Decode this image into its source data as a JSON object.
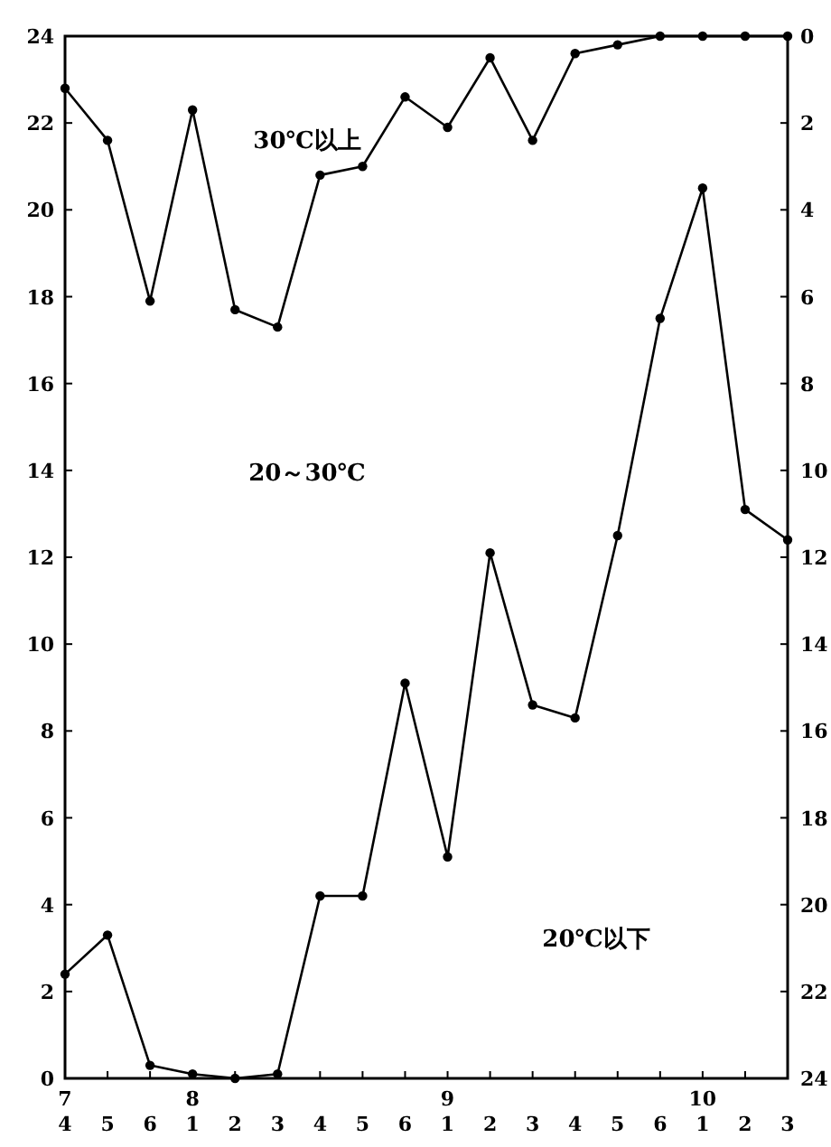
{
  "chart_data": {
    "type": "line",
    "categories": [
      "7\n4",
      "5",
      "6",
      "8\n1",
      "2",
      "3",
      "4",
      "5",
      "6",
      "9\n1",
      "2",
      "3",
      "4",
      "5",
      "6",
      "10\n1",
      "2",
      "3"
    ],
    "series": [
      {
        "color": "#000000",
        "axis": "y2",
        "values": [
          1.2,
          2.4,
          6.1,
          1.7,
          6.3,
          6.7,
          3.2,
          3.0,
          1.4,
          2.1,
          0.5,
          2.4,
          0.4,
          0.2,
          0,
          0,
          0,
          0
        ]
      },
      {
        "color": "#000000",
        "values": [
          2.4,
          3.3,
          0.3,
          0.1,
          0,
          0.1,
          4.2,
          4.2,
          9.1,
          5.1,
          12.1,
          8.6,
          8.3,
          12.5,
          17.5,
          20.5,
          13.1,
          12.4
        ]
      }
    ],
    "ylim": [
      0,
      24
    ],
    "yticks": [
      0,
      2,
      4,
      6,
      8,
      10,
      12,
      14,
      16,
      18,
      20,
      22,
      24
    ],
    "y2lim": [
      24,
      0
    ],
    "y2ticks": [
      0,
      2,
      4,
      6,
      8,
      10,
      12,
      14,
      16,
      18,
      20,
      22,
      24
    ],
    "annotations": [
      "30℃以上",
      "20～30℃",
      "20℃以下"
    ],
    "marker": "circle",
    "line_style": "solid",
    "grid": false
  }
}
